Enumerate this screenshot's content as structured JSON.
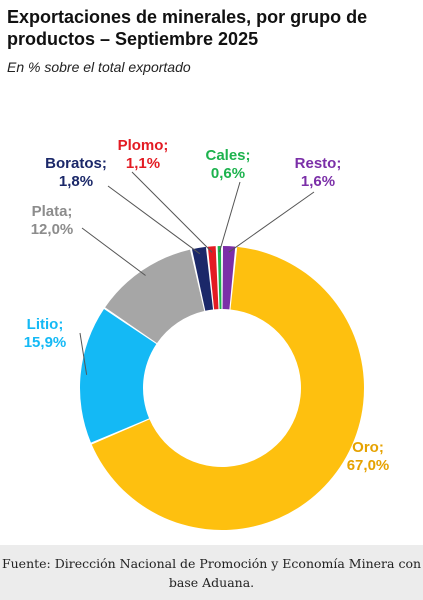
{
  "header": {
    "title": "Exportaciones de minerales, por grupo de productos – Septiembre 2025",
    "subtitle": "En % sobre el total exportado"
  },
  "footer": {
    "source": "Fuente: Dirección Nacional de Promoción y Economía Minera con base Aduana."
  },
  "chart_data": {
    "type": "pie",
    "variant": "donut",
    "title": "Exportaciones de minerales, por grupo de productos – Septiembre 2025",
    "subtitle": "En % sobre el total exportado",
    "unit": "%",
    "start_angle": "top, clockwise",
    "slices": [
      {
        "name": "Resto",
        "value": 1.6,
        "label": "Resto;",
        "value_label": "1,6%",
        "color": "#7b2fa8"
      },
      {
        "name": "Oro",
        "value": 67.0,
        "label": "Oro;",
        "value_label": "67,0%",
        "color": "#fec00f"
      },
      {
        "name": "Litio",
        "value": 15.9,
        "label": "Litio;",
        "value_label": "15,9%",
        "color": "#14b9f5"
      },
      {
        "name": "Plata",
        "value": 12.0,
        "label": "Plata;",
        "value_label": "12,0%",
        "color": "#a6a6a6"
      },
      {
        "name": "Boratos",
        "value": 1.8,
        "label": "Boratos;",
        "value_label": "1,8%",
        "color": "#1b2869"
      },
      {
        "name": "Plomo",
        "value": 1.1,
        "label": "Plomo;",
        "value_label": "1,1%",
        "color": "#e31b23"
      },
      {
        "name": "Cales",
        "value": 0.6,
        "label": "Cales;",
        "value_label": "0,6%",
        "color": "#1db34e"
      }
    ],
    "label_color_for": {
      "Oro": "#e6a200",
      "Plata": "#8c8c8c"
    }
  }
}
